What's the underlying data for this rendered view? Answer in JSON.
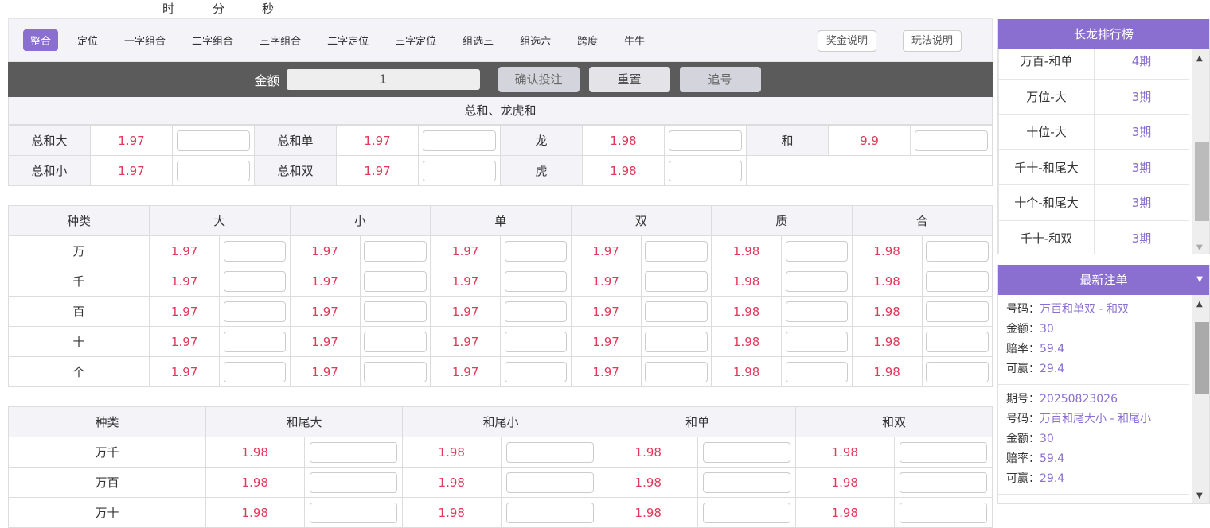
{
  "timer": {
    "hour": "时",
    "minute": "分",
    "second": "秒"
  },
  "nav": {
    "tabs": [
      "整合",
      "定位",
      "一字组合",
      "二字组合",
      "三字组合",
      "二字定位",
      "三字定位",
      "组选三",
      "组选六",
      "跨度",
      "牛牛"
    ],
    "active": 0,
    "prize_info": "奖金说明",
    "rules_info": "玩法说明"
  },
  "betbar": {
    "amount_label": "金额",
    "amount_value": "1",
    "confirm": "确认投注",
    "reset": "重置",
    "chase": "追号"
  },
  "sum_section": {
    "title": "总和、龙虎和",
    "rows": [
      [
        [
          "总和大",
          "1.97"
        ],
        [
          "总和单",
          "1.97"
        ],
        [
          "龙",
          "1.98"
        ],
        [
          "和",
          "9.9"
        ]
      ],
      [
        [
          "总和小",
          "1.97"
        ],
        [
          "总和双",
          "1.97"
        ],
        [
          "虎",
          "1.98"
        ]
      ]
    ]
  },
  "position_table": {
    "headers": [
      "种类",
      "大",
      "小",
      "单",
      "双",
      "质",
      "合"
    ],
    "rows": [
      {
        "label": "万",
        "odds": [
          "1.97",
          "1.97",
          "1.97",
          "1.97",
          "1.98",
          "1.98"
        ]
      },
      {
        "label": "千",
        "odds": [
          "1.97",
          "1.97",
          "1.97",
          "1.97",
          "1.98",
          "1.98"
        ]
      },
      {
        "label": "百",
        "odds": [
          "1.97",
          "1.97",
          "1.97",
          "1.97",
          "1.98",
          "1.98"
        ]
      },
      {
        "label": "十",
        "odds": [
          "1.97",
          "1.97",
          "1.97",
          "1.97",
          "1.98",
          "1.98"
        ]
      },
      {
        "label": "个",
        "odds": [
          "1.97",
          "1.97",
          "1.97",
          "1.97",
          "1.98",
          "1.98"
        ]
      }
    ]
  },
  "pair_table": {
    "headers": [
      "种类",
      "和尾大",
      "和尾小",
      "和单",
      "和双"
    ],
    "rows": [
      {
        "label": "万千",
        "odds": [
          "1.98",
          "1.98",
          "1.98",
          "1.98"
        ]
      },
      {
        "label": "万百",
        "odds": [
          "1.98",
          "1.98",
          "1.98",
          "1.98"
        ]
      },
      {
        "label": "万十",
        "odds": [
          "1.98",
          "1.98",
          "1.98",
          "1.98"
        ]
      }
    ]
  },
  "long_dragon": {
    "title": "长龙排行榜",
    "rows": [
      [
        "万百-和单",
        "4期"
      ],
      [
        "万位-大",
        "3期"
      ],
      [
        "十位-大",
        "3期"
      ],
      [
        "千十-和尾大",
        "3期"
      ],
      [
        "十个-和尾大",
        "3期"
      ],
      [
        "千十-和双",
        "3期"
      ]
    ]
  },
  "latest_orders": {
    "title": "最新注单",
    "labels": {
      "issue": "期号：",
      "code": "号码：",
      "amount": "金额：",
      "odds": "赔率：",
      "win": "可赢："
    },
    "orders": [
      {
        "code": "万百和单双 - 和双",
        "amount": "30",
        "odds": "59.4",
        "win": "29.4"
      },
      {
        "issue": "20250823026",
        "code": "万百和尾大小 - 和尾小",
        "amount": "30",
        "odds": "59.4",
        "win": "29.4"
      }
    ]
  },
  "colors": {
    "accent": "#8b6fd0",
    "odds": "#e0395a",
    "bar": "#5b5b5b"
  }
}
